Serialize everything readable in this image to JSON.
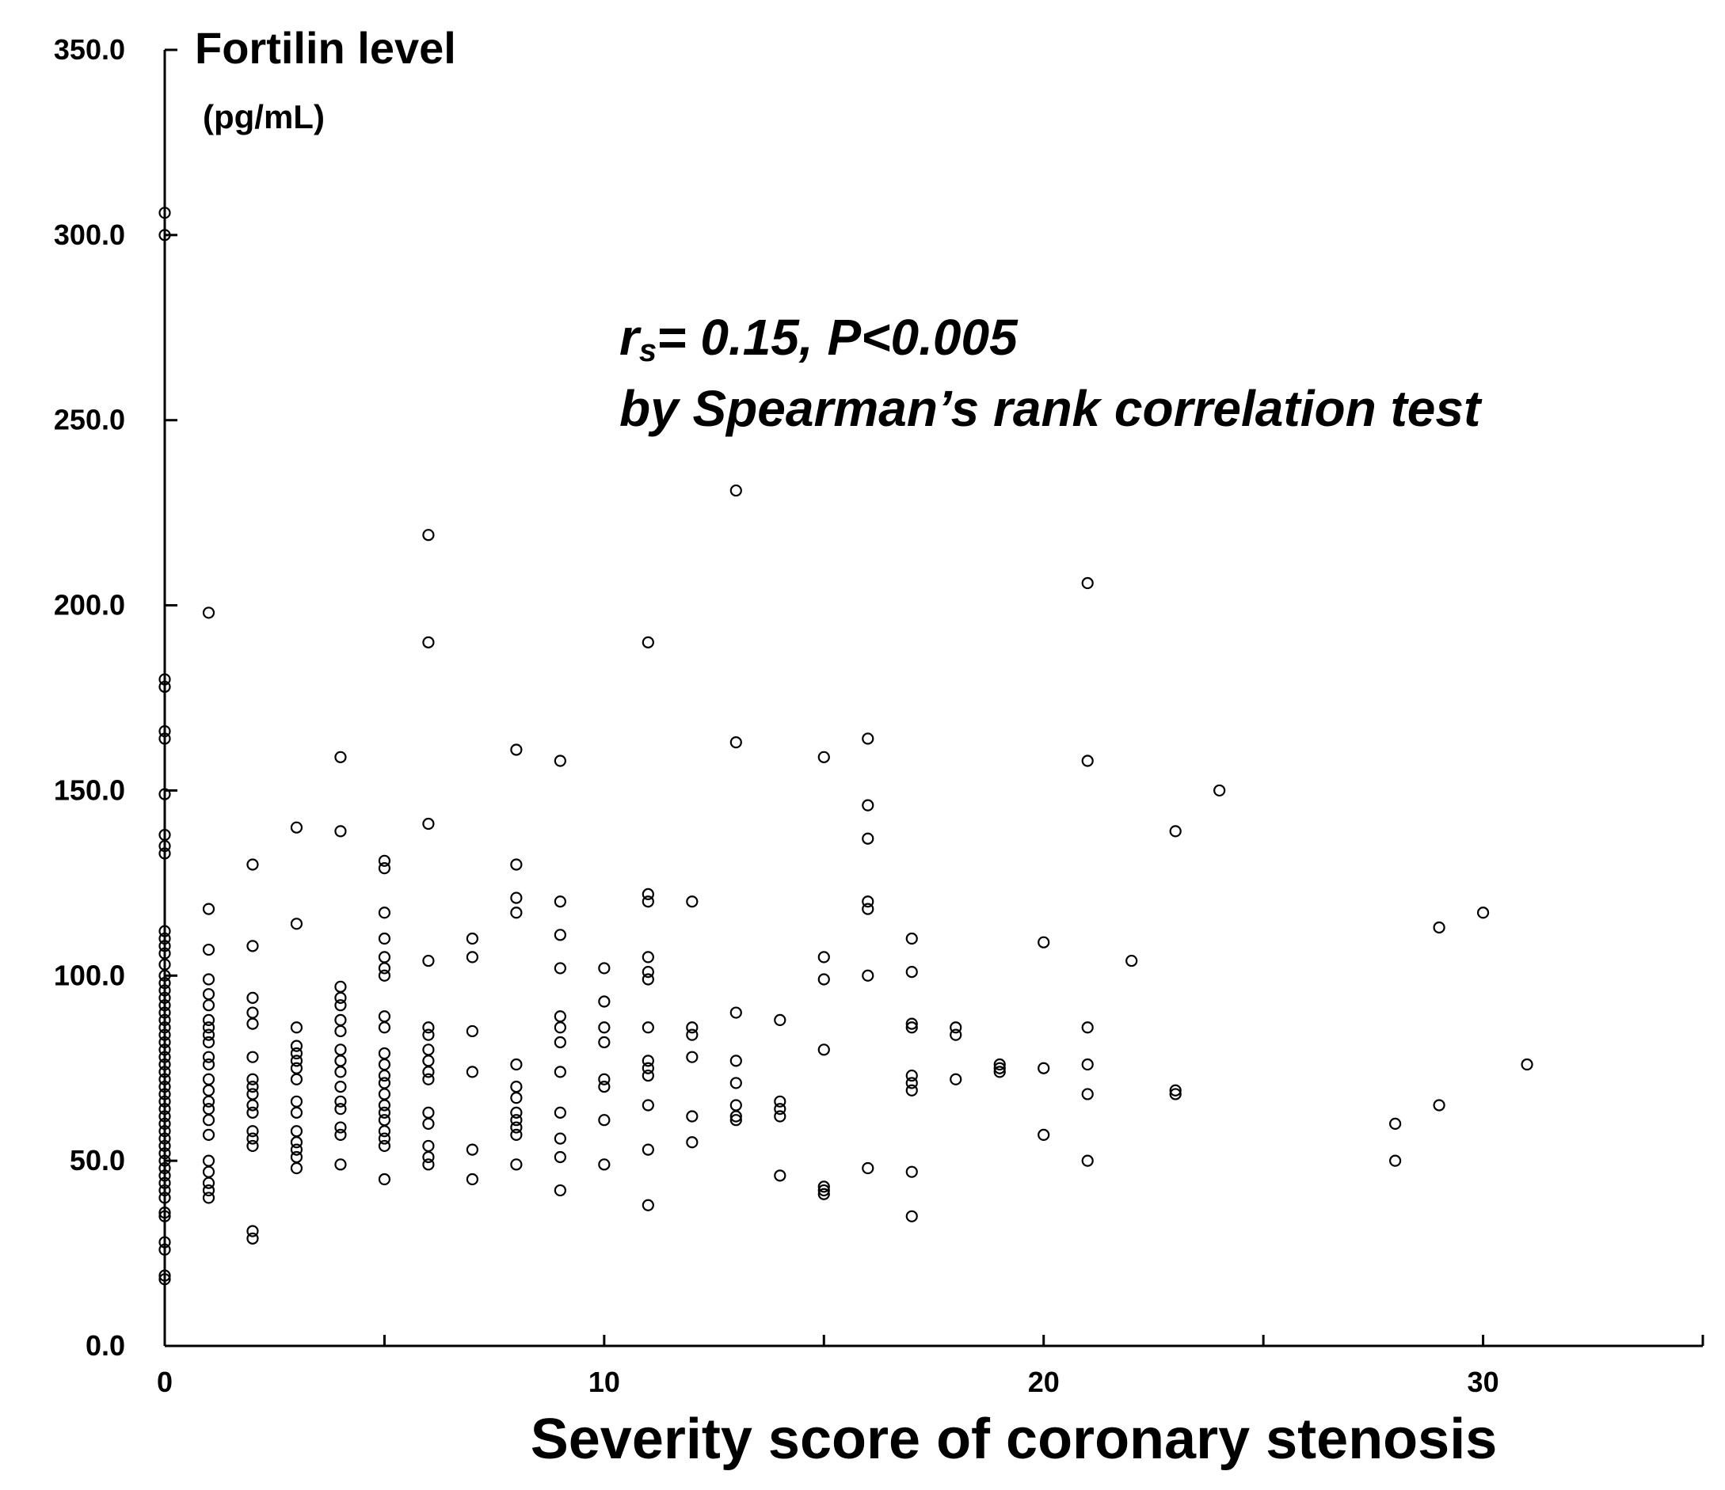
{
  "chart_data": {
    "type": "scatter",
    "title": "Fortilin level",
    "ylabel_unit": "(pg/mL)",
    "xlabel": "Severity score of coronary stenosis",
    "annotation": {
      "stat_prefix": "r",
      "stat_subscript": "s",
      "stat_rest": "= 0.15, P<0.005",
      "line2": "by Spearman’s rank correlation test"
    },
    "xlim": [
      0,
      35
    ],
    "ylim": [
      0,
      350
    ],
    "x_ticks": [
      0,
      10,
      20,
      30
    ],
    "x_tick_labels": [
      "0",
      "10",
      "20",
      "30"
    ],
    "y_ticks": [
      0,
      50,
      100,
      150,
      200,
      250,
      300,
      350
    ],
    "y_tick_labels": [
      "0.0",
      "50.0",
      "100.0",
      "150.0",
      "200.0",
      "250.0",
      "300.0",
      "350.0"
    ],
    "grid": false,
    "series": [
      {
        "name": "patients",
        "points": [
          [
            0,
            306
          ],
          [
            0,
            300
          ],
          [
            0,
            180
          ],
          [
            0,
            178
          ],
          [
            0,
            166
          ],
          [
            0,
            164
          ],
          [
            0,
            149
          ],
          [
            0,
            138
          ],
          [
            0,
            135
          ],
          [
            0,
            133
          ],
          [
            0,
            112
          ],
          [
            0,
            110
          ],
          [
            0,
            108
          ],
          [
            0,
            106
          ],
          [
            0,
            103
          ],
          [
            0,
            100
          ],
          [
            0,
            98
          ],
          [
            0,
            96
          ],
          [
            0,
            94
          ],
          [
            0,
            92
          ],
          [
            0,
            90
          ],
          [
            0,
            88
          ],
          [
            0,
            86
          ],
          [
            0,
            84
          ],
          [
            0,
            82
          ],
          [
            0,
            80
          ],
          [
            0,
            78
          ],
          [
            0,
            76
          ],
          [
            0,
            74
          ],
          [
            0,
            72
          ],
          [
            0,
            70
          ],
          [
            0,
            68
          ],
          [
            0,
            66
          ],
          [
            0,
            64
          ],
          [
            0,
            62
          ],
          [
            0,
            60
          ],
          [
            0,
            58
          ],
          [
            0,
            56
          ],
          [
            0,
            54
          ],
          [
            0,
            52
          ],
          [
            0,
            50
          ],
          [
            0,
            48
          ],
          [
            0,
            46
          ],
          [
            0,
            44
          ],
          [
            0,
            42
          ],
          [
            0,
            40
          ],
          [
            0,
            36
          ],
          [
            0,
            35
          ],
          [
            0,
            28
          ],
          [
            0,
            26
          ],
          [
            0,
            19
          ],
          [
            0,
            18
          ],
          [
            1,
            198
          ],
          [
            1,
            118
          ],
          [
            1,
            107
          ],
          [
            1,
            99
          ],
          [
            1,
            95
          ],
          [
            1,
            92
          ],
          [
            1,
            88
          ],
          [
            1,
            86
          ],
          [
            1,
            84
          ],
          [
            1,
            82
          ],
          [
            1,
            78
          ],
          [
            1,
            76
          ],
          [
            1,
            72
          ],
          [
            1,
            69
          ],
          [
            1,
            66
          ],
          [
            1,
            64
          ],
          [
            1,
            61
          ],
          [
            1,
            57
          ],
          [
            1,
            50
          ],
          [
            1,
            47
          ],
          [
            1,
            44
          ],
          [
            1,
            42
          ],
          [
            1,
            40
          ],
          [
            2,
            130
          ],
          [
            2,
            108
          ],
          [
            2,
            94
          ],
          [
            2,
            90
          ],
          [
            2,
            87
          ],
          [
            2,
            78
          ],
          [
            2,
            72
          ],
          [
            2,
            70
          ],
          [
            2,
            68
          ],
          [
            2,
            65
          ],
          [
            2,
            63
          ],
          [
            2,
            58
          ],
          [
            2,
            56
          ],
          [
            2,
            54
          ],
          [
            2,
            31
          ],
          [
            2,
            29
          ],
          [
            3,
            140
          ],
          [
            3,
            114
          ],
          [
            3,
            86
          ],
          [
            3,
            81
          ],
          [
            3,
            79
          ],
          [
            3,
            77
          ],
          [
            3,
            75
          ],
          [
            3,
            72
          ],
          [
            3,
            66
          ],
          [
            3,
            63
          ],
          [
            3,
            58
          ],
          [
            3,
            55
          ],
          [
            3,
            53
          ],
          [
            3,
            51
          ],
          [
            3,
            48
          ],
          [
            4,
            159
          ],
          [
            4,
            139
          ],
          [
            4,
            97
          ],
          [
            4,
            94
          ],
          [
            4,
            92
          ],
          [
            4,
            88
          ],
          [
            4,
            85
          ],
          [
            4,
            80
          ],
          [
            4,
            77
          ],
          [
            4,
            74
          ],
          [
            4,
            70
          ],
          [
            4,
            66
          ],
          [
            4,
            64
          ],
          [
            4,
            59
          ],
          [
            4,
            57
          ],
          [
            4,
            49
          ],
          [
            5,
            131
          ],
          [
            5,
            129
          ],
          [
            5,
            117
          ],
          [
            5,
            110
          ],
          [
            5,
            105
          ],
          [
            5,
            102
          ],
          [
            5,
            100
          ],
          [
            5,
            89
          ],
          [
            5,
            86
          ],
          [
            5,
            79
          ],
          [
            5,
            76
          ],
          [
            5,
            73
          ],
          [
            5,
            71
          ],
          [
            5,
            68
          ],
          [
            5,
            65
          ],
          [
            5,
            63
          ],
          [
            5,
            61
          ],
          [
            5,
            58
          ],
          [
            5,
            56
          ],
          [
            5,
            54
          ],
          [
            5,
            45
          ],
          [
            6,
            219
          ],
          [
            6,
            190
          ],
          [
            6,
            141
          ],
          [
            6,
            104
          ],
          [
            6,
            86
          ],
          [
            6,
            84
          ],
          [
            6,
            80
          ],
          [
            6,
            77
          ],
          [
            6,
            74
          ],
          [
            6,
            72
          ],
          [
            6,
            63
          ],
          [
            6,
            60
          ],
          [
            6,
            54
          ],
          [
            6,
            51
          ],
          [
            6,
            49
          ],
          [
            7,
            110
          ],
          [
            7,
            105
          ],
          [
            7,
            85
          ],
          [
            7,
            74
          ],
          [
            7,
            53
          ],
          [
            7,
            45
          ],
          [
            8,
            161
          ],
          [
            8,
            130
          ],
          [
            8,
            121
          ],
          [
            8,
            117
          ],
          [
            8,
            76
          ],
          [
            8,
            70
          ],
          [
            8,
            67
          ],
          [
            8,
            63
          ],
          [
            8,
            61
          ],
          [
            8,
            59
          ],
          [
            8,
            57
          ],
          [
            8,
            49
          ],
          [
            9,
            158
          ],
          [
            9,
            120
          ],
          [
            9,
            111
          ],
          [
            9,
            102
          ],
          [
            9,
            89
          ],
          [
            9,
            86
          ],
          [
            9,
            82
          ],
          [
            9,
            74
          ],
          [
            9,
            63
          ],
          [
            9,
            56
          ],
          [
            9,
            51
          ],
          [
            9,
            42
          ],
          [
            10,
            102
          ],
          [
            10,
            93
          ],
          [
            10,
            86
          ],
          [
            10,
            82
          ],
          [
            10,
            72
          ],
          [
            10,
            70
          ],
          [
            10,
            61
          ],
          [
            10,
            49
          ],
          [
            11,
            190
          ],
          [
            11,
            122
          ],
          [
            11,
            120
          ],
          [
            11,
            105
          ],
          [
            11,
            101
          ],
          [
            11,
            99
          ],
          [
            11,
            86
          ],
          [
            11,
            77
          ],
          [
            11,
            75
          ],
          [
            11,
            73
          ],
          [
            11,
            65
          ],
          [
            11,
            53
          ],
          [
            11,
            38
          ],
          [
            12,
            120
          ],
          [
            12,
            86
          ],
          [
            12,
            84
          ],
          [
            12,
            78
          ],
          [
            12,
            62
          ],
          [
            12,
            55
          ],
          [
            13,
            231
          ],
          [
            13,
            163
          ],
          [
            13,
            90
          ],
          [
            13,
            77
          ],
          [
            13,
            71
          ],
          [
            13,
            65
          ],
          [
            13,
            62
          ],
          [
            13,
            61
          ],
          [
            14,
            88
          ],
          [
            14,
            66
          ],
          [
            14,
            64
          ],
          [
            14,
            62
          ],
          [
            14,
            46
          ],
          [
            15,
            159
          ],
          [
            15,
            105
          ],
          [
            15,
            99
          ],
          [
            15,
            80
          ],
          [
            15,
            43
          ],
          [
            15,
            42
          ],
          [
            15,
            41
          ],
          [
            16,
            164
          ],
          [
            16,
            146
          ],
          [
            16,
            137
          ],
          [
            16,
            120
          ],
          [
            16,
            118
          ],
          [
            16,
            100
          ],
          [
            16,
            48
          ],
          [
            17,
            110
          ],
          [
            17,
            101
          ],
          [
            17,
            87
          ],
          [
            17,
            86
          ],
          [
            17,
            73
          ],
          [
            17,
            71
          ],
          [
            17,
            69
          ],
          [
            17,
            47
          ],
          [
            17,
            35
          ],
          [
            18,
            86
          ],
          [
            18,
            84
          ],
          [
            18,
            72
          ],
          [
            19,
            76
          ],
          [
            19,
            75
          ],
          [
            19,
            74
          ],
          [
            20,
            109
          ],
          [
            20,
            75
          ],
          [
            20,
            57
          ],
          [
            21,
            206
          ],
          [
            21,
            158
          ],
          [
            21,
            86
          ],
          [
            21,
            76
          ],
          [
            21,
            68
          ],
          [
            21,
            50
          ],
          [
            22,
            104
          ],
          [
            23,
            139
          ],
          [
            23,
            69
          ],
          [
            23,
            68
          ],
          [
            24,
            150
          ],
          [
            28,
            60
          ],
          [
            28,
            50
          ],
          [
            29,
            113
          ],
          [
            29,
            65
          ],
          [
            30,
            117
          ],
          [
            31,
            76
          ]
        ]
      }
    ]
  }
}
